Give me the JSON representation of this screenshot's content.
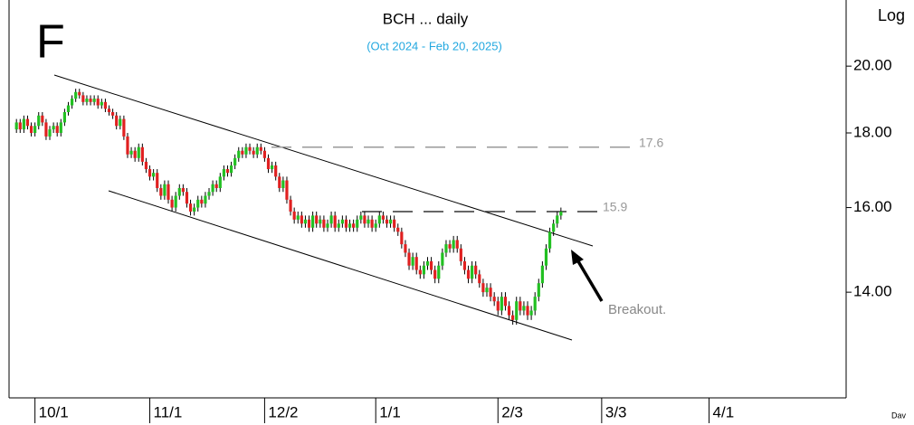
{
  "chart_data": {
    "type": "candlestick",
    "title": "BCH ... daily",
    "subtitle": "(Oct 2024 - Feb 20, 2025)",
    "panel_label": "F",
    "y_axis_label": "Log",
    "footer": "Dav",
    "annotations": [
      "Breakout."
    ],
    "log_scale": true,
    "up_color": "#22c022",
    "down_color": "#e02020",
    "ylim": [
      11.85,
      22.2
    ],
    "yticks": [
      {
        "value": 14,
        "label": "14.00"
      },
      {
        "value": 16,
        "label": "16.00"
      },
      {
        "value": 18,
        "label": "18.00"
      },
      {
        "value": 20,
        "label": "20.00"
      }
    ],
    "xlim": [
      "2024-09-24",
      "2025-05-08"
    ],
    "xticks": [
      {
        "value": "2024-10-01",
        "label": "10/1"
      },
      {
        "value": "2024-11-01",
        "label": "11/1"
      },
      {
        "value": "2024-12-02",
        "label": "12/2"
      },
      {
        "value": "2025-01-01",
        "label": "1/1"
      },
      {
        "value": "2025-02-03",
        "label": "2/3"
      },
      {
        "value": "2025-03-03",
        "label": "3/3"
      },
      {
        "value": "2025-04-01",
        "label": "4/1"
      }
    ],
    "levels": [
      17.6,
      15.9
    ],
    "x": [
      "2024-09-26",
      "2024-09-27",
      "2024-09-28",
      "2024-09-29",
      "2024-09-30",
      "2024-10-01",
      "2024-10-02",
      "2024-10-03",
      "2024-10-04",
      "2024-10-05",
      "2024-10-06",
      "2024-10-07",
      "2024-10-08",
      "2024-10-09",
      "2024-10-10",
      "2024-10-11",
      "2024-10-12",
      "2024-10-13",
      "2024-10-14",
      "2024-10-15",
      "2024-10-16",
      "2024-10-17",
      "2024-10-18",
      "2024-10-19",
      "2024-10-20",
      "2024-10-21",
      "2024-10-22",
      "2024-10-23",
      "2024-10-24",
      "2024-10-25",
      "2024-10-26",
      "2024-10-27",
      "2024-10-28",
      "2024-10-29",
      "2024-10-30",
      "2024-10-31",
      "2024-11-01",
      "2024-11-02",
      "2024-11-03",
      "2024-11-04",
      "2024-11-05",
      "2024-11-06",
      "2024-11-07",
      "2024-11-08",
      "2024-11-09",
      "2024-11-10",
      "2024-11-11",
      "2024-11-12",
      "2024-11-13",
      "2024-11-14",
      "2024-11-15",
      "2024-11-16",
      "2024-11-17",
      "2024-11-18",
      "2024-11-19",
      "2024-11-20",
      "2024-11-21",
      "2024-11-22",
      "2024-11-23",
      "2024-11-24",
      "2024-11-25",
      "2024-11-26",
      "2024-11-27",
      "2024-11-28",
      "2024-11-29",
      "2024-11-30",
      "2024-12-01",
      "2024-12-02",
      "2024-12-03",
      "2024-12-04",
      "2024-12-05",
      "2024-12-06",
      "2024-12-07",
      "2024-12-08",
      "2024-12-09",
      "2024-12-10",
      "2024-12-11",
      "2024-12-12",
      "2024-12-13",
      "2024-12-14",
      "2024-12-15",
      "2024-12-16",
      "2024-12-17",
      "2024-12-18",
      "2024-12-19",
      "2024-12-20",
      "2024-12-21",
      "2024-12-22",
      "2024-12-23",
      "2024-12-24",
      "2024-12-25",
      "2024-12-26",
      "2024-12-27",
      "2024-12-28",
      "2024-12-29",
      "2024-12-30",
      "2024-12-31",
      "2025-01-01",
      "2025-01-02",
      "2025-01-03",
      "2025-01-04",
      "2025-01-05",
      "2025-01-06",
      "2025-01-07",
      "2025-01-08",
      "2025-01-09",
      "2025-01-10",
      "2025-01-11",
      "2025-01-12",
      "2025-01-13",
      "2025-01-14",
      "2025-01-15",
      "2025-01-16",
      "2025-01-17",
      "2025-01-18",
      "2025-01-19",
      "2025-01-20",
      "2025-01-21",
      "2025-01-22",
      "2025-01-23",
      "2025-01-24",
      "2025-01-25",
      "2025-01-26",
      "2025-01-27",
      "2025-01-28",
      "2025-01-29",
      "2025-01-30",
      "2025-01-31",
      "2025-02-01",
      "2025-02-02",
      "2025-02-03",
      "2025-02-04",
      "2025-02-05",
      "2025-02-06",
      "2025-02-07",
      "2025-02-08",
      "2025-02-09",
      "2025-02-10",
      "2025-02-11",
      "2025-02-12",
      "2025-02-13",
      "2025-02-14",
      "2025-02-15",
      "2025-02-16",
      "2025-02-17",
      "2025-02-18",
      "2025-02-19",
      "2025-02-20"
    ],
    "open": [
      18.1,
      18.3,
      18.1,
      18.4,
      18.2,
      18.0,
      18.2,
      18.5,
      18.3,
      17.9,
      18.1,
      18.2,
      18.0,
      18.3,
      18.6,
      18.8,
      19.0,
      19.2,
      19.1,
      18.9,
      19.0,
      18.9,
      19.0,
      18.8,
      18.9,
      18.7,
      18.6,
      18.5,
      18.2,
      18.4,
      17.9,
      17.4,
      17.5,
      17.3,
      17.6,
      17.2,
      17.0,
      16.8,
      16.9,
      16.5,
      16.3,
      16.6,
      16.2,
      16.0,
      16.3,
      16.5,
      16.4,
      16.1,
      15.9,
      16.0,
      16.2,
      16.1,
      16.3,
      16.4,
      16.6,
      16.5,
      16.8,
      17.0,
      16.9,
      17.1,
      17.3,
      17.5,
      17.4,
      17.6,
      17.5,
      17.4,
      17.6,
      17.5,
      17.3,
      17.0,
      17.1,
      16.8,
      16.5,
      16.7,
      16.2,
      15.9,
      15.7,
      15.8,
      15.6,
      15.7,
      15.5,
      15.8,
      15.6,
      15.7,
      15.5,
      15.6,
      15.8,
      15.5,
      15.6,
      15.7,
      15.5,
      15.6,
      15.5,
      15.7,
      15.8,
      15.6,
      15.7,
      15.5,
      15.6,
      15.8,
      15.7,
      15.6,
      15.7,
      15.5,
      15.4,
      15.1,
      14.9,
      14.6,
      14.8,
      14.5,
      14.4,
      14.6,
      14.7,
      14.5,
      14.3,
      14.6,
      14.9,
      15.1,
      15.0,
      15.2,
      15.0,
      14.7,
      14.5,
      14.3,
      14.6,
      14.4,
      14.2,
      14.0,
      14.1,
      13.9,
      13.8,
      13.6,
      13.9,
      13.7,
      13.5,
      13.4,
      13.8,
      13.6,
      13.7,
      13.5,
      13.6,
      13.9,
      14.2,
      14.6,
      15.0,
      15.4,
      15.6,
      15.8
    ],
    "high": [
      18.4,
      18.4,
      18.5,
      18.5,
      18.3,
      18.3,
      18.6,
      18.6,
      18.4,
      18.2,
      18.3,
      18.3,
      18.4,
      18.7,
      18.9,
      19.1,
      19.3,
      19.3,
      19.2,
      19.1,
      19.1,
      19.1,
      19.1,
      19.0,
      19.0,
      18.8,
      18.7,
      18.6,
      18.5,
      18.5,
      18.0,
      17.6,
      17.6,
      17.7,
      17.7,
      17.3,
      17.1,
      17.0,
      17.0,
      16.6,
      16.7,
      16.7,
      16.3,
      16.4,
      16.6,
      16.6,
      16.5,
      16.2,
      16.1,
      16.3,
      16.3,
      16.4,
      16.5,
      16.7,
      16.7,
      16.9,
      17.1,
      17.1,
      17.2,
      17.4,
      17.6,
      17.6,
      17.7,
      17.7,
      17.6,
      17.7,
      17.7,
      17.6,
      17.4,
      17.2,
      17.2,
      16.9,
      16.8,
      16.8,
      16.3,
      16.0,
      15.9,
      15.9,
      15.8,
      15.8,
      15.9,
      15.9,
      15.8,
      15.8,
      15.7,
      15.9,
      15.9,
      15.7,
      15.8,
      15.8,
      15.7,
      15.7,
      15.8,
      15.9,
      15.9,
      15.8,
      15.8,
      15.7,
      15.9,
      15.9,
      15.8,
      15.8,
      15.8,
      15.6,
      15.5,
      15.2,
      15.0,
      14.9,
      14.9,
      14.6,
      14.7,
      14.8,
      14.8,
      14.6,
      14.7,
      15.0,
      15.2,
      15.2,
      15.3,
      15.3,
      15.1,
      14.8,
      14.6,
      14.7,
      14.7,
      14.5,
      14.3,
      14.2,
      14.2,
      14.0,
      13.9,
      14.0,
      14.0,
      13.8,
      13.6,
      13.9,
      13.9,
      13.8,
      13.8,
      13.7,
      14.0,
      14.3,
      14.7,
      15.1,
      15.5,
      15.7,
      15.9,
      16.0
    ],
    "low": [
      18.0,
      18.0,
      18.0,
      18.1,
      17.9,
      17.9,
      18.1,
      18.2,
      17.8,
      17.8,
      18.0,
      17.9,
      17.9,
      18.2,
      18.5,
      18.7,
      18.9,
      19.0,
      18.8,
      18.8,
      18.8,
      18.8,
      18.7,
      18.7,
      18.6,
      18.5,
      18.4,
      18.1,
      18.1,
      17.8,
      17.3,
      17.3,
      17.2,
      17.2,
      17.1,
      16.9,
      16.7,
      16.7,
      16.4,
      16.2,
      16.2,
      16.1,
      15.9,
      15.9,
      16.2,
      16.3,
      16.0,
      15.8,
      15.8,
      15.9,
      16.0,
      16.0,
      16.2,
      16.3,
      16.4,
      16.4,
      16.7,
      16.8,
      16.8,
      17.0,
      17.2,
      17.3,
      17.3,
      17.4,
      17.3,
      17.3,
      17.4,
      17.2,
      16.9,
      16.9,
      16.7,
      16.4,
      16.4,
      16.1,
      15.8,
      15.6,
      15.6,
      15.5,
      15.5,
      15.4,
      15.4,
      15.5,
      15.5,
      15.4,
      15.4,
      15.5,
      15.4,
      15.4,
      15.5,
      15.4,
      15.4,
      15.4,
      15.4,
      15.6,
      15.5,
      15.5,
      15.4,
      15.4,
      15.5,
      15.6,
      15.5,
      15.5,
      15.4,
      15.3,
      15.0,
      14.8,
      14.5,
      14.5,
      14.4,
      14.3,
      14.3,
      14.5,
      14.4,
      14.2,
      14.2,
      14.5,
      14.8,
      14.9,
      14.9,
      14.9,
      14.6,
      14.4,
      14.2,
      14.2,
      14.3,
      14.1,
      13.9,
      13.9,
      13.8,
      13.7,
      13.5,
      13.5,
      13.6,
      13.4,
      13.3,
      13.3,
      13.5,
      13.5,
      13.4,
      13.4,
      13.5,
      13.8,
      14.1,
      14.5,
      14.9,
      15.3,
      15.5,
      15.7
    ],
    "close": [
      18.3,
      18.1,
      18.4,
      18.2,
      18.0,
      18.2,
      18.5,
      18.3,
      17.9,
      18.1,
      18.2,
      18.0,
      18.3,
      18.6,
      18.8,
      19.0,
      19.2,
      19.1,
      18.9,
      19.0,
      18.9,
      19.0,
      18.8,
      18.9,
      18.7,
      18.6,
      18.5,
      18.2,
      18.4,
      17.9,
      17.4,
      17.5,
      17.3,
      17.6,
      17.2,
      17.0,
      16.8,
      16.9,
      16.5,
      16.3,
      16.6,
      16.2,
      16.0,
      16.3,
      16.5,
      16.4,
      16.1,
      15.9,
      16.0,
      16.2,
      16.1,
      16.3,
      16.4,
      16.6,
      16.5,
      16.8,
      17.0,
      16.9,
      17.1,
      17.3,
      17.5,
      17.4,
      17.6,
      17.5,
      17.4,
      17.6,
      17.5,
      17.3,
      17.0,
      17.1,
      16.8,
      16.5,
      16.7,
      16.2,
      15.9,
      15.7,
      15.8,
      15.6,
      15.7,
      15.5,
      15.8,
      15.6,
      15.7,
      15.5,
      15.6,
      15.8,
      15.5,
      15.6,
      15.7,
      15.5,
      15.6,
      15.5,
      15.7,
      15.8,
      15.6,
      15.7,
      15.5,
      15.6,
      15.8,
      15.7,
      15.6,
      15.7,
      15.5,
      15.4,
      15.1,
      14.9,
      14.6,
      14.8,
      14.5,
      14.4,
      14.6,
      14.7,
      14.5,
      14.3,
      14.6,
      14.9,
      15.1,
      15.0,
      15.2,
      15.0,
      14.7,
      14.5,
      14.3,
      14.6,
      14.4,
      14.2,
      14.0,
      14.1,
      13.9,
      13.8,
      13.6,
      13.9,
      13.7,
      13.5,
      13.4,
      13.8,
      13.6,
      13.7,
      13.5,
      13.6,
      13.9,
      14.2,
      14.6,
      15.0,
      15.4,
      15.6,
      15.8,
      15.9
    ]
  }
}
